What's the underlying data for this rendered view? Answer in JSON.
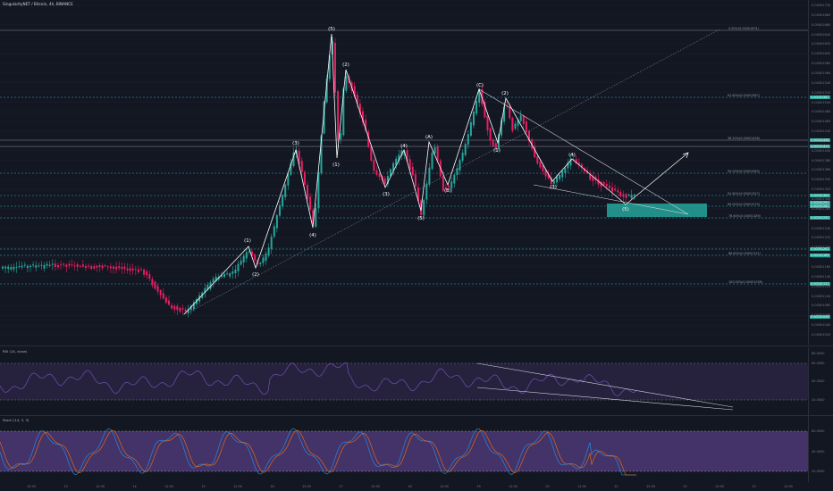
{
  "header": {
    "symbol_title": "SingularityNET / Bitcoin, 4h, BINANCE"
  },
  "rsi": {
    "title": "RSI (14, close)",
    "levels": [
      "80.0000",
      "60.0000",
      "40.0000",
      "20.0000"
    ]
  },
  "stoch": {
    "title": "Stoch (14, 3, 3)",
    "levels": [
      "80.0000",
      "40.0000",
      "20.0000"
    ]
  },
  "price_scale": [
    "0.00001700",
    "0.00001680",
    "0.00001660",
    "0.00001640",
    "0.00001620",
    "0.00001600",
    "0.00001580",
    "0.00001560",
    "0.00001540",
    "0.00001520",
    "0.00001500",
    "0.00001480",
    "0.00001460",
    "0.00001440",
    "0.00001420",
    "0.00001400",
    "0.00001380",
    "0.00001360",
    "0.00001340",
    "0.00001320",
    "0.00001300",
    "0.00001280",
    "0.00001260",
    "0.00001240",
    "0.00001220",
    "0.00001200",
    "0.00001180",
    "0.00001160",
    "0.00001140",
    "0.00001120",
    "0.00001100",
    "0.00001080",
    "0.00001060",
    "0.00001040",
    "0.00001020"
  ],
  "fib_levels": [
    {
      "label": "0.00%(0.00001674)",
      "color": "#9598a1"
    },
    {
      "label": "61.80%(0.00001587)",
      "color": "#26c6da"
    },
    {
      "label": "38.20%(0.00001436)",
      "color": "#9598a1"
    },
    {
      "label": "50.00%(0.00001382)",
      "color": "#26c6da"
    },
    {
      "label": "61.80%(0.00001327)",
      "color": "#26c6da"
    },
    {
      "label": "65.00%(0.00001270)",
      "color": "#26c6da"
    },
    {
      "label": "78.60%(0.00001189)",
      "color": "#26c6da"
    },
    {
      "label": "88.60%(0.00001131)",
      "color": "#26c6da"
    },
    {
      "label": "100.00%(0.00001056)",
      "color": "#26c6da"
    }
  ],
  "price_tags": [
    {
      "text": "0.00001587",
      "color": "#26a69a"
    },
    {
      "text": "0.00001436",
      "color": "#26a69a"
    },
    {
      "text": "0.00001415",
      "color": "#26a69a"
    },
    {
      "text": "0.00001304",
      "color": "#26a69a"
    },
    {
      "text": "0.00001291",
      "color": "#26a69a"
    },
    {
      "text": "0.00001282",
      "color": "#26a69a"
    },
    {
      "text": "0.00001252",
      "color": "#26a69a"
    },
    {
      "text": "0.00001202",
      "color": "#26a69a"
    },
    {
      "text": "0.00001189",
      "color": "#26a69a"
    },
    {
      "text": "0.00001131",
      "color": "#26a69a"
    },
    {
      "text": "0.00001056",
      "color": "#26a69a"
    }
  ],
  "wave_labels": [
    "(1)",
    "(2)",
    "(3)",
    "(4)",
    "(5)",
    "(1)",
    "(2)",
    "(3)",
    "(4)",
    "(5)",
    "(A)",
    "(B)",
    "(C)",
    "(1)",
    "(2)",
    "(3)",
    "(4)",
    "(5)"
  ],
  "time_axis": [
    "12:00",
    "13",
    "12:00",
    "14",
    "12:00",
    "15",
    "12:00",
    "16",
    "12:00",
    "17",
    "12:00",
    "18",
    "12:00",
    "19",
    "12:00",
    "20",
    "12:00",
    "21",
    "12:00",
    "22",
    "12:00",
    "23",
    "12:00"
  ],
  "colors": {
    "background": "#131722",
    "up": "#26a69a",
    "down": "#e91e63",
    "fib": "#26c6da",
    "target_box": "#26a69a",
    "rsi_band": "#7e57c2"
  }
}
